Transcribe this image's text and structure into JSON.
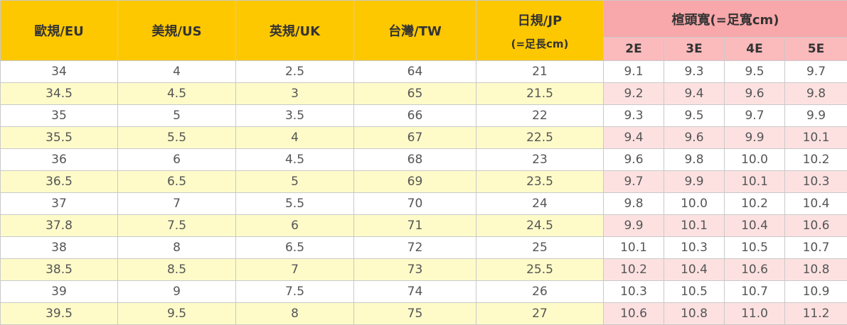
{
  "header": {
    "columns": [
      "歐規/EU",
      "美規/US",
      "英規/UK",
      "台灣/TW"
    ],
    "jp": {
      "title": "日規/JP",
      "subtitle": "(=足長cm)"
    },
    "width": {
      "title": "楦頭寬(=足寬cm)",
      "columns": [
        "2E",
        "3E",
        "4E",
        "5E"
      ]
    }
  },
  "rows": [
    [
      "34",
      "4",
      "2.5",
      "64",
      "21",
      "9.1",
      "9.3",
      "9.5",
      "9.7"
    ],
    [
      "34.5",
      "4.5",
      "3",
      "65",
      "21.5",
      "9.2",
      "9.4",
      "9.6",
      "9.8"
    ],
    [
      "35",
      "5",
      "3.5",
      "66",
      "22",
      "9.3",
      "9.5",
      "9.7",
      "9.9"
    ],
    [
      "35.5",
      "5.5",
      "4",
      "67",
      "22.5",
      "9.4",
      "9.6",
      "9.9",
      "10.1"
    ],
    [
      "36",
      "6",
      "4.5",
      "68",
      "23",
      "9.6",
      "9.8",
      "10.0",
      "10.2"
    ],
    [
      "36.5",
      "6.5",
      "5",
      "69",
      "23.5",
      "9.7",
      "9.9",
      "10.1",
      "10.3"
    ],
    [
      "37",
      "7",
      "5.5",
      "70",
      "24",
      "9.8",
      "10.0",
      "10.2",
      "10.4"
    ],
    [
      "37.8",
      "7.5",
      "6",
      "71",
      "24.5",
      "9.9",
      "10.1",
      "10.4",
      "10.6"
    ],
    [
      "38",
      "8",
      "6.5",
      "72",
      "25",
      "10.1",
      "10.3",
      "10.5",
      "10.7"
    ],
    [
      "38.5",
      "8.5",
      "7",
      "73",
      "25.5",
      "10.2",
      "10.4",
      "10.6",
      "10.8"
    ],
    [
      "39",
      "9",
      "7.5",
      "74",
      "26",
      "10.3",
      "10.5",
      "10.7",
      "10.9"
    ],
    [
      "39.5",
      "9.5",
      "8",
      "75",
      "27",
      "10.6",
      "10.8",
      "11.0",
      "11.2"
    ]
  ]
}
